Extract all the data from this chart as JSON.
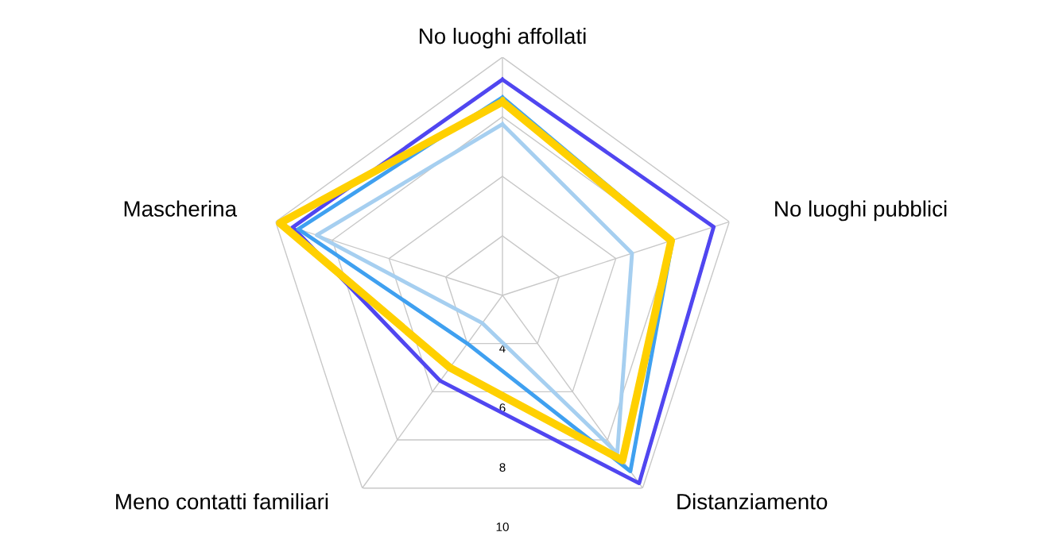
{
  "chart_data": {
    "type": "radar",
    "categories": [
      "No luoghi affollati",
      "No luoghi pubblici",
      "Distanziamento",
      "Meno contatti familiari",
      "Mascherina"
    ],
    "ylim": [
      2,
      10
    ],
    "yticks": [
      4,
      6,
      8,
      10
    ],
    "grid": true,
    "legend": false,
    "series": [
      {
        "color": "#5046f0",
        "values": [
          9.25,
          9.45,
          9.8,
          5.55,
          9.4
        ]
      },
      {
        "color": "#3fa0f0",
        "values": [
          8.65,
          8.0,
          9.3,
          4.0,
          9.2
        ]
      },
      {
        "color": "#a6cff0",
        "values": [
          7.75,
          6.57,
          8.55,
          3.15,
          8.55
        ]
      },
      {
        "color": "#ffd000",
        "values": [
          8.5,
          7.95,
          8.85,
          5.0,
          9.85
        ]
      }
    ]
  }
}
